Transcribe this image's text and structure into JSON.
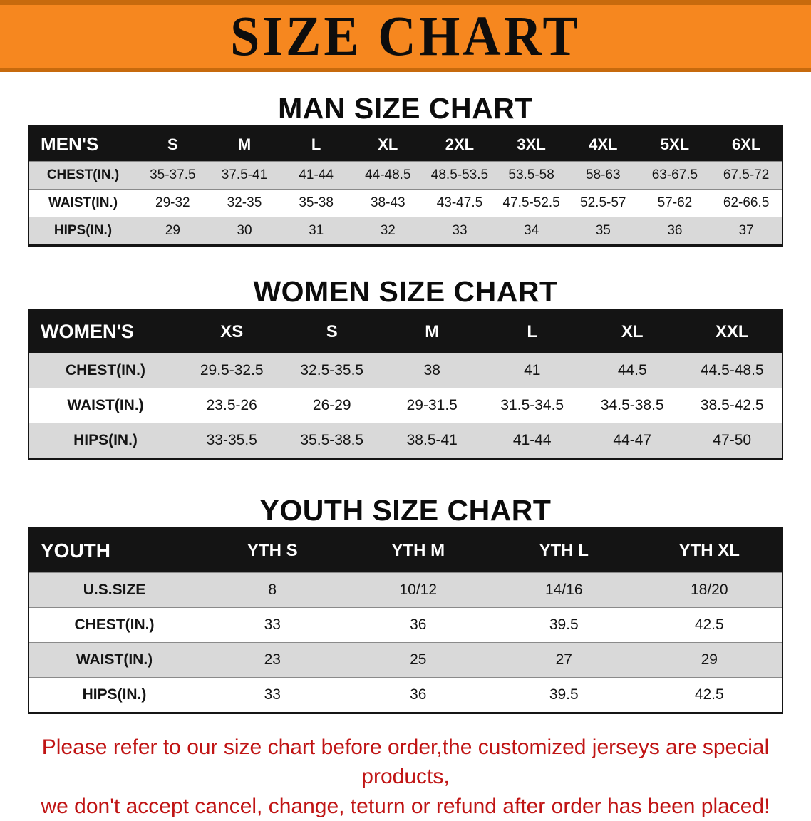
{
  "banner": {
    "title": "SIZE CHART"
  },
  "sections": [
    {
      "heading": "MAN SIZE CHART",
      "table": {
        "header": [
          "MEN'S",
          "S",
          "M",
          "L",
          "XL",
          "2XL",
          "3XL",
          "4XL",
          "5XL",
          "6XL"
        ],
        "rows": [
          [
            "CHEST(IN.)",
            "35-37.5",
            "37.5-41",
            "41-44",
            "44-48.5",
            "48.5-53.5",
            "53.5-58",
            "58-63",
            "63-67.5",
            "67.5-72"
          ],
          [
            "WAIST(IN.)",
            "29-32",
            "32-35",
            "35-38",
            "38-43",
            "43-47.5",
            "47.5-52.5",
            "52.5-57",
            "57-62",
            "62-66.5"
          ],
          [
            "HIPS(IN.)",
            "29",
            "30",
            "31",
            "32",
            "33",
            "34",
            "35",
            "36",
            "37"
          ]
        ]
      }
    },
    {
      "heading": "WOMEN SIZE CHART",
      "table": {
        "header": [
          "WOMEN'S",
          "XS",
          "S",
          "M",
          "L",
          "XL",
          "XXL"
        ],
        "rows": [
          [
            "CHEST(IN.)",
            "29.5-32.5",
            "32.5-35.5",
            "38",
            "41",
            "44.5",
            "44.5-48.5"
          ],
          [
            "WAIST(IN.)",
            "23.5-26",
            "26-29",
            "29-31.5",
            "31.5-34.5",
            "34.5-38.5",
            "38.5-42.5"
          ],
          [
            "HIPS(IN.)",
            "33-35.5",
            "35.5-38.5",
            "38.5-41",
            "41-44",
            "44-47",
            "47-50"
          ]
        ]
      }
    },
    {
      "heading": "YOUTH SIZE CHART",
      "table": {
        "header": [
          "YOUTH",
          "YTH S",
          "YTH M",
          "YTH L",
          "YTH XL"
        ],
        "rows": [
          [
            "U.S.SIZE",
            "8",
            "10/12",
            "14/16",
            "18/20"
          ],
          [
            "CHEST(IN.)",
            "33",
            "36",
            "39.5",
            "42.5"
          ],
          [
            "WAIST(IN.)",
            "23",
            "25",
            "27",
            "29"
          ],
          [
            "HIPS(IN.)",
            "33",
            "36",
            "39.5",
            "42.5"
          ]
        ]
      }
    }
  ],
  "footer": {
    "line1": "Please refer to our size chart before order,the customized jerseys are special products,",
    "line2": "we don't accept cancel, change, teturn or refund after order has been placed!"
  },
  "colors": {
    "banner_bg": "#f6871f",
    "banner_border": "#c76a0d",
    "table_header_bg": "#141414",
    "row_shade": "#d9d9d9",
    "footer_text": "#c01414"
  }
}
